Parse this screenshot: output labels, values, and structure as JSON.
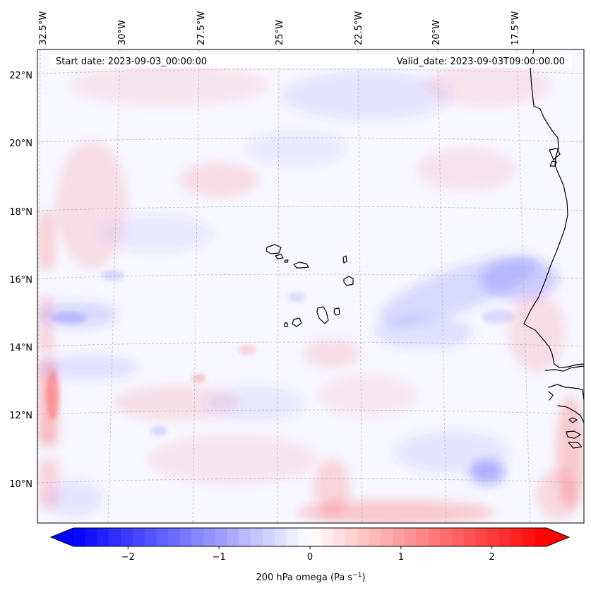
{
  "map": {
    "header": {
      "start_date": "Start date: 2023-09-03_00:00:00",
      "valid_date": "Valid_date: 2023-09-03T09:00:00.00"
    },
    "longitude_labels": [
      "32.5°W",
      "30°W",
      "27.5°W",
      "25°W",
      "22.5°W",
      "20°W",
      "17.5°W"
    ],
    "latitude_labels": [
      "22°N",
      "20°N",
      "18°N",
      "16°N",
      "14°N",
      "12°N",
      "10°N"
    ],
    "features": [
      "Cape Verde islands",
      "West African coastline"
    ]
  },
  "colorbar": {
    "ticks": [
      "−2",
      "−1",
      "0",
      "1",
      "2"
    ],
    "tick_values": [
      -2,
      -1,
      0,
      1,
      2
    ],
    "vmin": -2.6,
    "vmax": 2.6,
    "label_main": "200 hPa omega (Pa s",
    "label_sup": "−1",
    "label_end": ")",
    "colors": {
      "negative": "#0000ff",
      "zero": "#ffffff",
      "positive": "#ff0000"
    }
  },
  "colors": {
    "coastline": "#000000",
    "gridline": "#b8b8c8",
    "field_background": "#f7f7ff"
  }
}
